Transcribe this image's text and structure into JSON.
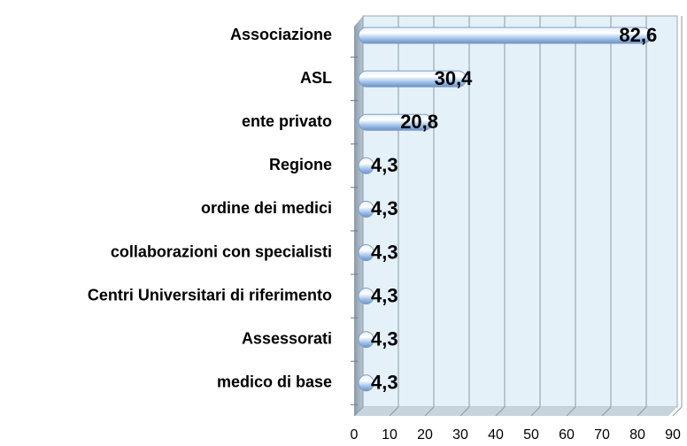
{
  "chart_data": {
    "type": "bar",
    "orientation": "horizontal",
    "categories": [
      "Associazione",
      "ASL",
      "ente privato",
      "Regione",
      "ordine dei medici",
      "collaborazioni con specialisti",
      "Centri Universitari di riferimento",
      "Assessorati",
      "medico di base"
    ],
    "values": [
      82.6,
      30.4,
      20.8,
      4.3,
      4.3,
      4.3,
      4.3,
      4.3,
      4.3
    ],
    "value_labels": [
      "82,6",
      "30,4",
      "20,8",
      "4,3",
      "4,3",
      "4,3",
      "4,3",
      "4,3",
      "4,3"
    ],
    "color": "#a9cbec",
    "xlim": [
      0,
      90
    ],
    "xticks": [
      0,
      10,
      20,
      30,
      40,
      50,
      60,
      70,
      80,
      90
    ],
    "grid": true
  }
}
